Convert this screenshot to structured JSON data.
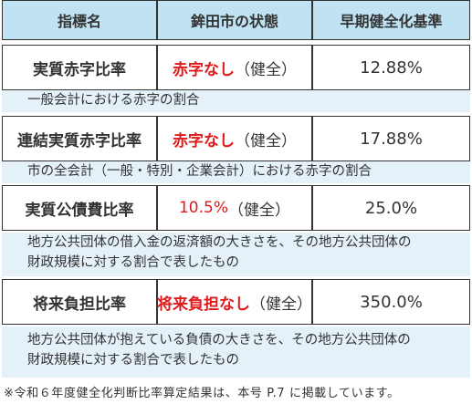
{
  "headers": [
    "指標名",
    "鉾田市の状態",
    "早期健全化基準"
  ],
  "rows": [
    {
      "name": "実質赤字比率",
      "status_red": "赤字なし",
      "status_suffix": "（健全）",
      "standard": "12.88%",
      "note_lines": [
        "一般会計における赤字の割合"
      ]
    },
    {
      "name": "連結実質赤字比率",
      "status_red": "赤字なし",
      "status_suffix": "（健全）",
      "standard": "17.88%",
      "note_lines": [
        "市の全会計（一般・特別・企業会計）における赤字の割合"
      ]
    },
    {
      "name": "実質公債費比率",
      "status_red": "10.5%",
      "status_suffix": "（健全）",
      "standard": "25.0%",
      "note_lines": [
        "地方公共団体の借入金の返済額の大きさを、その地方公共団体の",
        "財政規模に対する割合で表したもの"
      ]
    },
    {
      "name": "将来負担比率",
      "status_red": "将来負担なし",
      "status_suffix": "（健全）",
      "standard": "350.0%",
      "note_lines": [
        "地方公共団体が抱えている負債の大きさを、その地方公共団体の",
        "財政規模に対する割合で表したもの"
      ]
    }
  ],
  "footnote": "※令和６年度健全化判断比率算定結果は、本号 P.7 に掲載しています。",
  "colors": {
    "header_bg": "#bfe3f2",
    "note_bg": "#e4f1f9",
    "status_red": "#e0191b",
    "border": "#333333"
  }
}
